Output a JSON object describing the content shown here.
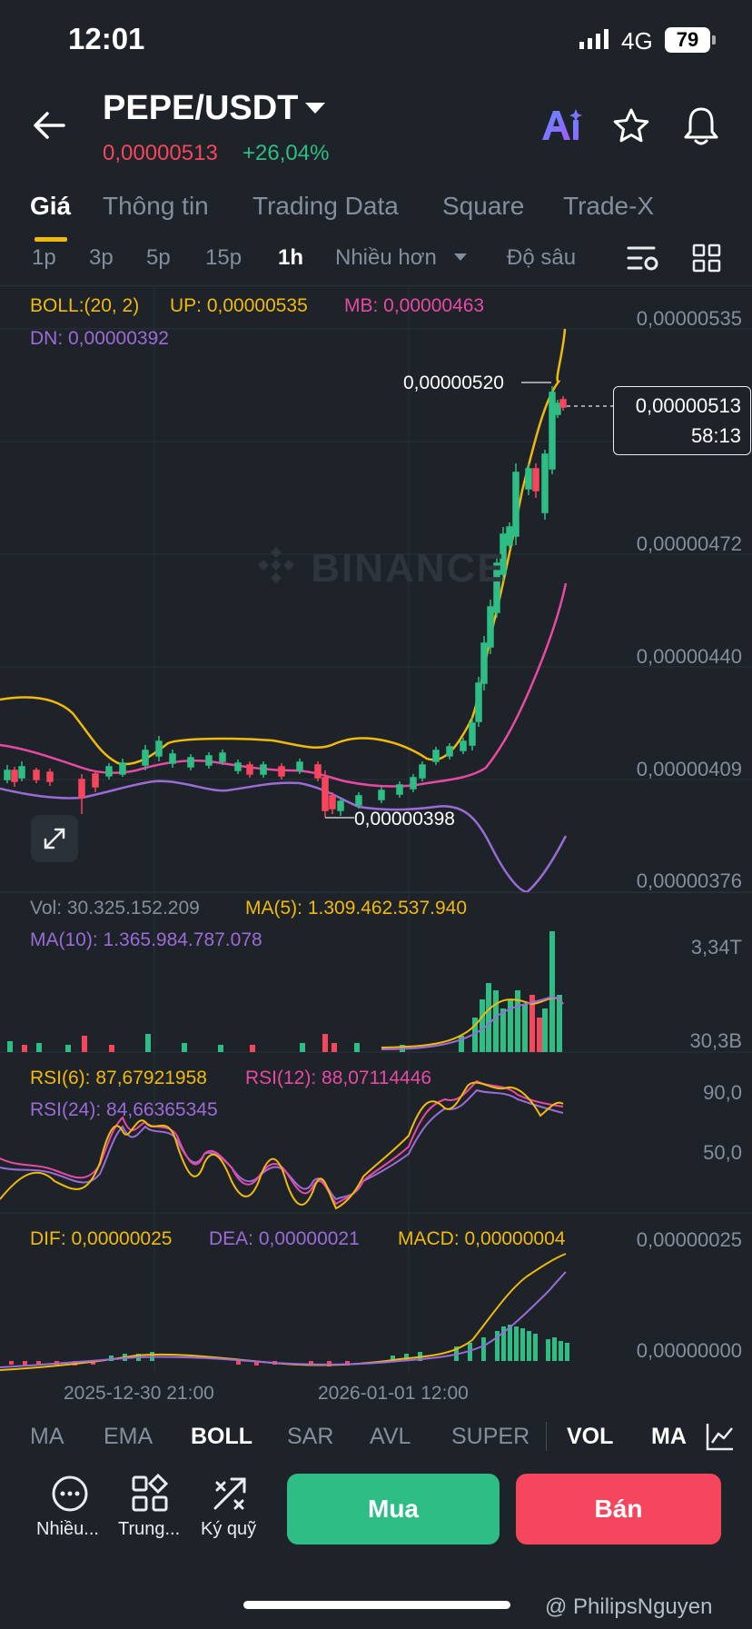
{
  "status_bar": {
    "time": "12:01",
    "network": "4G",
    "battery": "79"
  },
  "header": {
    "pair": "PEPE/USDT",
    "price": "0,00000513",
    "change": "+26,04%"
  },
  "tabs": [
    "Giá",
    "Thông tin",
    "Trading Data",
    "Square",
    "Trade-X"
  ],
  "intervals": {
    "items": [
      "1p",
      "3p",
      "5p",
      "15p",
      "1h"
    ],
    "more": "Nhiều hơn",
    "depth": "Độ sâu",
    "active": "1h"
  },
  "boll": {
    "label": "BOLL:(20, 2)",
    "up": "UP: 0,00000535",
    "mb": "MB: 0,00000463",
    "dn": "DN: 0,00000392"
  },
  "price_axis": [
    "0,00000535",
    "0,00000472",
    "0,00000440",
    "0,00000409",
    "0,00000376"
  ],
  "markers": {
    "high": "0,00000520",
    "low": "0,00000398"
  },
  "current_price_box": {
    "price": "0,00000513",
    "countdown": "58:13"
  },
  "watermark": "BINANCE",
  "volume": {
    "vol": "Vol: 30.325.152.209",
    "ma5": "MA(5): 1.309.462.537.940",
    "ma10": "MA(10): 1.365.984.787.078",
    "axis_top": "3,34T",
    "axis_bottom": "30,3B"
  },
  "rsi": {
    "rsi6": "RSI(6): 87,67921958",
    "rsi12": "RSI(12): 88,07114446",
    "rsi24": "RSI(24): 84,66365345",
    "axis_top": "90,0",
    "axis_mid": "50,0"
  },
  "macd": {
    "dif": "DIF: 0,00000025",
    "dea": "DEA: 0,00000021",
    "macd": "MACD: 0,00000004",
    "axis_top": "0,00000025",
    "axis_bottom": "0,00000000"
  },
  "time_axis": [
    "2025-12-30 21:00",
    "2026-01-01 12:00"
  ],
  "indicators": [
    "MA",
    "EMA",
    "BOLL",
    "SAR",
    "AVL",
    "SUPER",
    "VOL",
    "MA"
  ],
  "actions": [
    "Nhiều...",
    "Trung...",
    "Ký quỹ"
  ],
  "buy_label": "Mua",
  "sell_label": "Bán",
  "credit": "@ PhilipsNguyen",
  "colors": {
    "up": "#2ebd85",
    "down": "#f6465d",
    "accent": "#f0b90b",
    "mb": "#e84aa3",
    "dn": "#9b6bd8",
    "bg": "#1e2329"
  }
}
